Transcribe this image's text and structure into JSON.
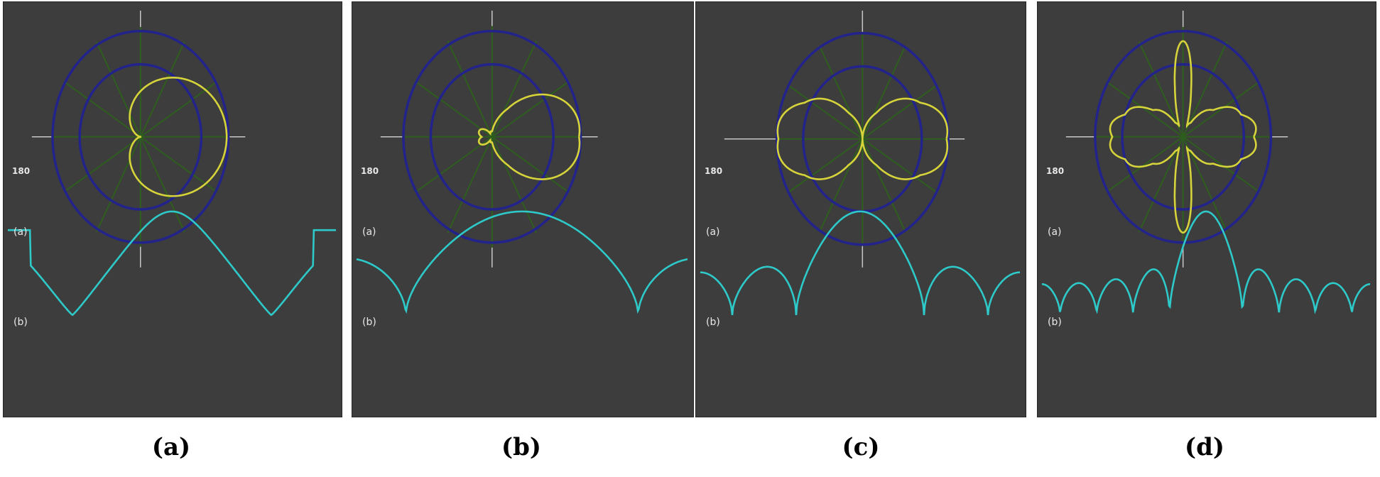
{
  "colors": {
    "panel_bg": "#3d3d3d",
    "axis": "#c8c8c8",
    "ring": "#23238c",
    "radial": "#2e5e1e",
    "pattern": "#d6d43a",
    "response": "#2ec9c9",
    "caption": "#000000"
  },
  "panels": [
    {
      "caption": "(a)",
      "angle_label": "180",
      "label_a": "(a)",
      "label_b": "(b)",
      "polar_pattern": "cardioid",
      "response_curve": "single main lobe"
    },
    {
      "caption": "(b)",
      "angle_label": "180",
      "label_a": "(a)",
      "label_b": "(b)",
      "polar_pattern": "single lobe with side lobes",
      "response_curve": "main lobe with side lobes"
    },
    {
      "caption": "(c)",
      "angle_label": "180",
      "label_a": "(a)",
      "label_b": "(b)",
      "polar_pattern": "figure-eight",
      "response_curve": "main lobe with multiple side lobes"
    },
    {
      "caption": "(d)",
      "angle_label": "180",
      "label_a": "(a)",
      "label_b": "(b)",
      "polar_pattern": "multi-lobe",
      "response_curve": "multiple grating lobes"
    }
  ]
}
